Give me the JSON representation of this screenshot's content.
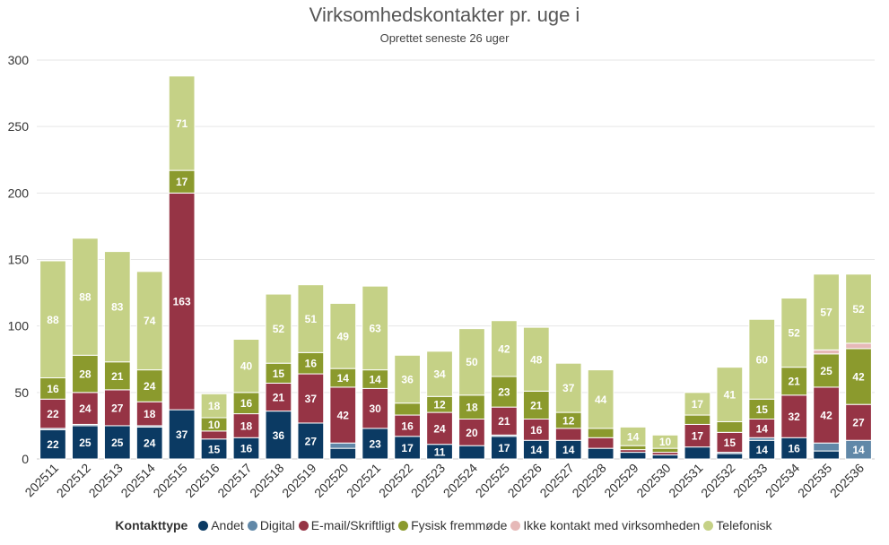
{
  "chart_data": {
    "type": "bar",
    "stacked": true,
    "title": "Virksomhedskontakter pr. uge i",
    "subtitle": "Oprettet seneste 26 uger",
    "xlabel": "",
    "ylabel": "",
    "ylim": [
      0,
      300
    ],
    "yticks": [
      0,
      50,
      100,
      150,
      200,
      250,
      300
    ],
    "grid": true,
    "legend_position": "bottom",
    "legend_title": "Kontakttype",
    "categories": [
      "202511",
      "202512",
      "202513",
      "202514",
      "202515",
      "202516",
      "202517",
      "202518",
      "202519",
      "202520",
      "202521",
      "202522",
      "202523",
      "202524",
      "202525",
      "202526",
      "202527",
      "202528",
      "202529",
      "202530",
      "202531",
      "202532",
      "202533",
      "202534",
      "202535",
      "202536"
    ],
    "series": [
      {
        "name": "Andet",
        "color": "#0b3a63",
        "values": [
          22,
          25,
          25,
          24,
          37,
          15,
          16,
          36,
          27,
          8,
          23,
          17,
          11,
          10,
          17,
          14,
          14,
          8,
          5,
          3,
          9,
          4,
          14,
          16,
          6,
          0
        ],
        "labels": [
          true,
          true,
          true,
          true,
          true,
          true,
          true,
          true,
          true,
          false,
          true,
          true,
          true,
          false,
          true,
          true,
          true,
          false,
          false,
          false,
          false,
          false,
          true,
          true,
          false,
          false
        ]
      },
      {
        "name": "Digital",
        "color": "#6188a8",
        "values": [
          1,
          1,
          0,
          1,
          0,
          0,
          0,
          0,
          0,
          4,
          0,
          0,
          0,
          0,
          1,
          0,
          0,
          0,
          0,
          0,
          0,
          1,
          2,
          0,
          6,
          14
        ],
        "labels": [
          false,
          false,
          false,
          false,
          false,
          false,
          false,
          false,
          false,
          false,
          false,
          false,
          false,
          false,
          false,
          false,
          false,
          false,
          false,
          false,
          false,
          false,
          false,
          false,
          false,
          true
        ]
      },
      {
        "name": "E-mail/Skriftligt",
        "color": "#963445",
        "values": [
          22,
          24,
          27,
          18,
          163,
          6,
          18,
          21,
          37,
          42,
          30,
          16,
          24,
          20,
          21,
          16,
          9,
          8,
          2,
          2,
          17,
          15,
          14,
          32,
          42,
          27
        ],
        "labels": [
          true,
          true,
          true,
          true,
          true,
          false,
          true,
          true,
          true,
          true,
          true,
          true,
          true,
          true,
          true,
          true,
          false,
          false,
          false,
          false,
          true,
          true,
          true,
          true,
          true,
          true
        ]
      },
      {
        "name": "Fysisk fremmøde",
        "color": "#8b9a2d",
        "values": [
          16,
          28,
          21,
          24,
          17,
          10,
          16,
          15,
          16,
          14,
          14,
          9,
          12,
          18,
          23,
          21,
          12,
          7,
          3,
          3,
          7,
          8,
          15,
          21,
          25,
          42
        ],
        "labels": [
          true,
          true,
          true,
          true,
          true,
          true,
          true,
          true,
          true,
          true,
          true,
          false,
          true,
          true,
          true,
          true,
          true,
          false,
          false,
          false,
          false,
          false,
          true,
          true,
          true,
          true
        ]
      },
      {
        "name": "Ikke kontakt med virksomheden",
        "color": "#e6b9b8",
        "values": [
          0,
          0,
          0,
          0,
          0,
          0,
          0,
          0,
          0,
          0,
          0,
          0,
          0,
          0,
          0,
          0,
          0,
          0,
          0,
          0,
          0,
          0,
          0,
          0,
          3,
          4
        ],
        "labels": [
          false,
          false,
          false,
          false,
          false,
          false,
          false,
          false,
          false,
          false,
          false,
          false,
          false,
          false,
          false,
          false,
          false,
          false,
          false,
          false,
          false,
          false,
          false,
          false,
          false,
          false
        ]
      },
      {
        "name": "Telefonisk",
        "color": "#c5d186",
        "values": [
          88,
          88,
          83,
          74,
          71,
          18,
          40,
          52,
          51,
          49,
          63,
          36,
          34,
          50,
          42,
          48,
          37,
          44,
          14,
          10,
          17,
          41,
          60,
          52,
          57,
          52
        ],
        "labels": [
          true,
          true,
          true,
          true,
          true,
          true,
          true,
          true,
          true,
          true,
          true,
          true,
          true,
          true,
          true,
          true,
          true,
          true,
          true,
          true,
          true,
          true,
          true,
          true,
          true,
          true
        ]
      }
    ]
  }
}
